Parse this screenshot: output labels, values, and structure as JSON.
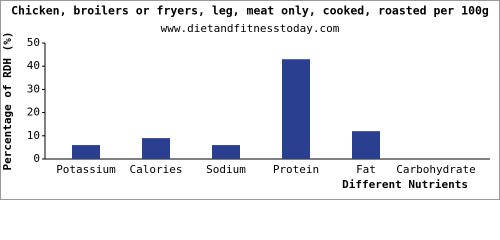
{
  "chart_data": {
    "type": "bar",
    "title": "Chicken, broilers or fryers, leg, meat only, cooked, roasted per 100g",
    "subtitle": "www.dietandfitnesstoday.com",
    "x_label": "Different Nutrients",
    "y_label": "Percentage of RDH (%)",
    "categories": [
      "Potassium",
      "Calories",
      "Sodium",
      "Protein",
      "Fat",
      "Carbohydrate"
    ],
    "values": [
      6,
      9,
      6,
      43,
      12,
      0
    ],
    "color": "#2a3f8f",
    "ylim": [
      0,
      50
    ],
    "yticks": [
      0,
      10,
      20,
      30,
      40,
      50
    ],
    "grid": false
  }
}
